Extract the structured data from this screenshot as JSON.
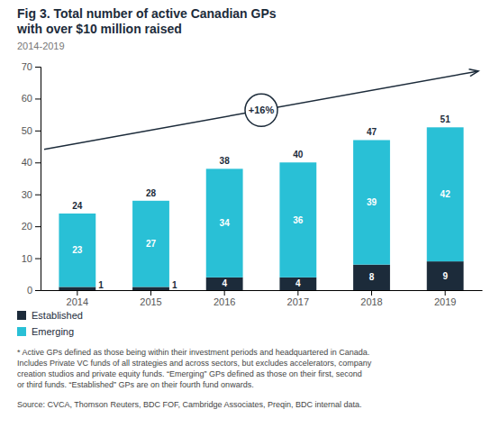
{
  "chart_data": {
    "type": "bar",
    "stacked": true,
    "title": [
      "Fig 3. Total number of active Canadian GPs",
      "with over $10 million raised"
    ],
    "subtitle": "2014-2019",
    "categories": [
      "2014",
      "2015",
      "2016",
      "2017",
      "2018",
      "2019"
    ],
    "series": [
      {
        "name": "Established",
        "color": "#1c2b3a",
        "values": [
          1,
          1,
          4,
          4,
          8,
          9
        ]
      },
      {
        "name": "Emerging",
        "color": "#29c0d6",
        "values": [
          23,
          27,
          34,
          36,
          39,
          42
        ]
      }
    ],
    "totals": [
      24,
      28,
      38,
      40,
      47,
      51
    ],
    "data_labels": true,
    "annotation": "+16%",
    "ylim": [
      0,
      70
    ],
    "yticks": [
      0,
      10,
      20,
      30,
      40,
      50,
      60,
      70
    ],
    "grid": false,
    "legend": "bottom",
    "footnote": [
      "* Active GPs defined as those being within their investment periods and headquartered in Canada.",
      "Includes Private VC funds of all strategies and across sectors, but excludes accelerators, company",
      "creation studios and private equity funds. “Emerging” GPs defined as those on their first, second",
      "or third funds. “Established” GPs are on their fourth fund onwards."
    ],
    "source": "Source: CVCA, Thomson Reuters, BDC FOF, Cambridge Associates, Preqin, BDC internal data."
  }
}
